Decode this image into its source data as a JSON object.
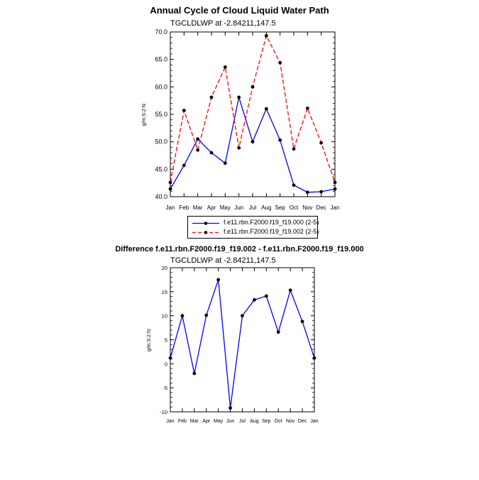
{
  "panel1": {
    "title": "Annual Cycle of Cloud Liquid Water Path",
    "subtitle": "TGCLDLWP at -2.84211,147.5",
    "ylabel": "g/m:S:2:N:",
    "legend": {
      "series1": "f.e11.rbn.F2000.f19_f19.000 (2-5)",
      "series2": "f.e11.rbn.F2000.f19_f19.002 (2-5)"
    }
  },
  "panel2": {
    "title": "Difference f.e11.rbn.F2000.f19_f19.002 - f.e11.rbn.F2000.f19_f19.000",
    "subtitle": "TGCLDLWP at -2.84211,147.5",
    "ylabel": "g/m:S:2:N:"
  },
  "colors": {
    "series1": "#0000ff",
    "series2": "#ff0000",
    "marker": "#000000"
  },
  "chart_data": [
    {
      "type": "line",
      "title": "Annual Cycle of Cloud Liquid Water Path",
      "subtitle": "TGCLDLWP at -2.84211,147.5",
      "ylabel": "g/m:S:2:N:",
      "categories": [
        "Jan",
        "Feb",
        "Mar",
        "Apr",
        "May",
        "Jun",
        "Jul",
        "Aug",
        "Sep",
        "Oct",
        "Nov",
        "Dec",
        "Jan"
      ],
      "ylim": [
        40,
        70
      ],
      "yticks": [
        "40.0",
        "45.0",
        "50.0",
        "55.0",
        "60.0",
        "65.0",
        "70.0"
      ],
      "legend_position": "below",
      "series": [
        {
          "name": "f.e11.rbn.F2000.f19_f19.000 (2-5)",
          "style": "solid",
          "color": "#0000ff",
          "values": [
            41.4,
            45.7,
            50.5,
            48.0,
            46.1,
            58.1,
            50.0,
            56.0,
            50.3,
            42.1,
            40.8,
            40.9,
            41.4
          ]
        },
        {
          "name": "f.e11.rbn.F2000.f19_f19.002 (2-5)",
          "style": "dashed",
          "color": "#ff0000",
          "values": [
            42.6,
            55.7,
            48.5,
            58.1,
            63.6,
            48.9,
            60.0,
            69.3,
            64.4,
            48.7,
            56.1,
            49.8,
            42.6
          ]
        }
      ]
    },
    {
      "type": "line",
      "title": "Difference f.e11.rbn.F2000.f19_f19.002 - f.e11.rbn.F2000.f19_f19.000",
      "subtitle": "TGCLDLWP at -2.84211,147.5",
      "ylabel": "g/m:S:2:N:",
      "categories": [
        "Jan",
        "Feb",
        "Mar",
        "Apr",
        "May",
        "Jun",
        "Jul",
        "Aug",
        "Sep",
        "Oct",
        "Nov",
        "Dec",
        "Jan"
      ],
      "ylim": [
        -10,
        20
      ],
      "yticks": [
        "-10",
        "-5",
        "0",
        "5",
        "10",
        "15",
        "20"
      ],
      "series": [
        {
          "style": "solid",
          "color": "#0000ff",
          "values": [
            1.2,
            10.0,
            -2.0,
            10.1,
            17.5,
            -9.2,
            10.0,
            13.3,
            14.1,
            6.6,
            15.3,
            8.8,
            1.2
          ]
        }
      ]
    }
  ]
}
